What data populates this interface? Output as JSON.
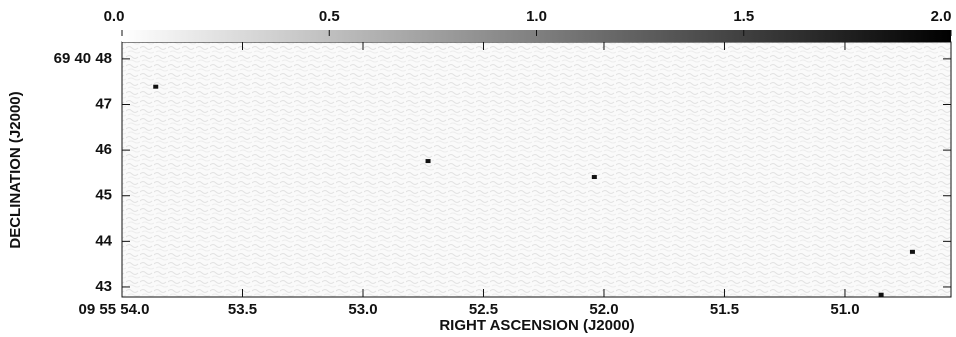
{
  "chart_data": {
    "type": "image",
    "x_label": "RIGHT ASCENSION (J2000)",
    "y_label": "DECLINATION (J2000)",
    "xlim": [
      54.0,
      50.56
    ],
    "ylim": [
      42.78,
      48.37
    ],
    "xticks": [
      {
        "value": 54.0,
        "label": "09 55 54.0"
      },
      53.5,
      {
        "value": 53,
        "label": "53.0"
      },
      52.5,
      {
        "value": 52,
        "label": "52.0"
      },
      51.5,
      {
        "value": 51,
        "label": "51.0"
      }
    ],
    "yticks": [
      {
        "value": 48,
        "label": "69 40 48"
      },
      47,
      46,
      45,
      44,
      43
    ],
    "colorbar_lim": [
      0,
      2
    ],
    "colorbar_ticks": [
      {
        "value": 0,
        "label": "0.0"
      },
      0.5,
      {
        "value": 1,
        "label": "1.0"
      },
      1.5,
      {
        "value": 2,
        "label": "2.0"
      }
    ],
    "colormap": [
      "#ffffff",
      "#000000"
    ],
    "sources": {
      "x": [
        53.86,
        52.73,
        52.04,
        50.72,
        50.85
      ],
      "y": [
        47.39,
        45.76,
        45.41,
        43.77,
        42.83
      ],
      "color": "#111111"
    }
  }
}
